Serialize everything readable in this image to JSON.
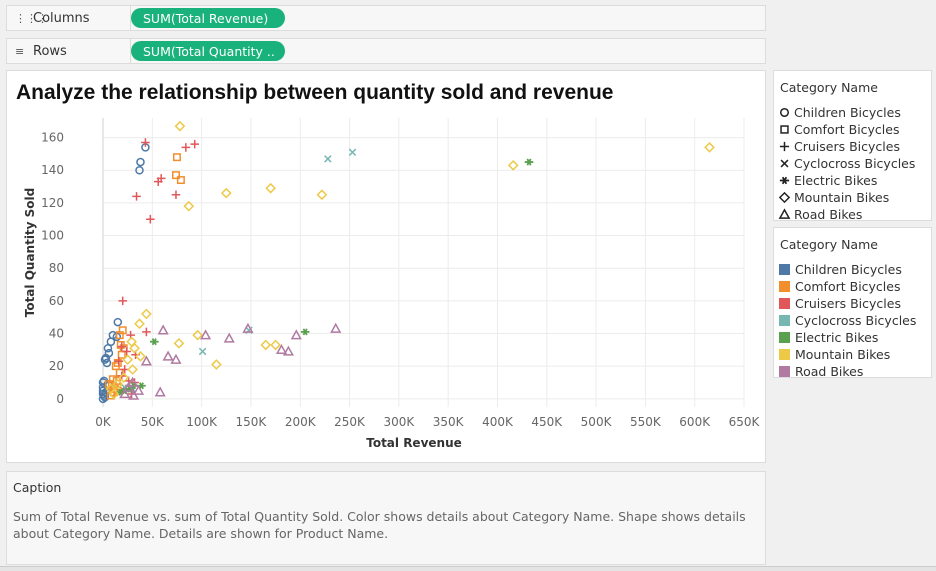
{
  "shelves": {
    "columns": {
      "label": "Columns",
      "icon": "columns-icon",
      "pill": "SUM(Total Revenue)"
    },
    "rows": {
      "label": "Rows",
      "icon": "rows-icon",
      "pill": "SUM(Total Quantity .."
    }
  },
  "legends": {
    "shape": {
      "title": "Category Name",
      "items": [
        {
          "label": "Children Bicycles",
          "shape": "circle"
        },
        {
          "label": "Comfort Bicycles",
          "shape": "square"
        },
        {
          "label": "Cruisers Bicycles",
          "shape": "plus"
        },
        {
          "label": "Cyclocross Bicycles",
          "shape": "cross"
        },
        {
          "label": "Electric Bikes",
          "shape": "asterisk"
        },
        {
          "label": "Mountain Bikes",
          "shape": "diamond"
        },
        {
          "label": "Road Bikes",
          "shape": "triangle"
        }
      ]
    },
    "color": {
      "title": "Category Name",
      "items": [
        {
          "label": "Children Bicycles",
          "color": "#4e79a7"
        },
        {
          "label": "Comfort Bicycles",
          "color": "#f28e2b"
        },
        {
          "label": "Cruisers Bicycles",
          "color": "#e15759"
        },
        {
          "label": "Cyclocross Bicycles",
          "color": "#76b7b2"
        },
        {
          "label": "Electric Bikes",
          "color": "#59a14f"
        },
        {
          "label": "Mountain Bikes",
          "color": "#edc948"
        },
        {
          "label": "Road Bikes",
          "color": "#b07aa1"
        }
      ]
    }
  },
  "caption": {
    "title": "Caption",
    "text": "Sum of Total Revenue vs. sum of Total Quantity Sold.  Color shows details about Category Name.  Shape shows details about Category Name.  Details are shown for Product Name."
  },
  "chart_data": {
    "type": "scatter",
    "title": "Analyze the relationship between quantity sold and revenue",
    "xlabel": "Total Revenue",
    "ylabel": "Total Quantity Sold",
    "xlim": [
      0,
      650000
    ],
    "ylim": [
      -5,
      172
    ],
    "x_ticks": [
      0,
      50000,
      100000,
      150000,
      200000,
      250000,
      300000,
      350000,
      400000,
      450000,
      500000,
      550000,
      600000,
      650000
    ],
    "x_tick_labels": [
      "0K",
      "50K",
      "100K",
      "150K",
      "200K",
      "250K",
      "300K",
      "350K",
      "400K",
      "450K",
      "500K",
      "550K",
      "600K",
      "650K"
    ],
    "y_ticks": [
      0,
      20,
      40,
      60,
      80,
      100,
      120,
      140,
      160
    ],
    "grid": true,
    "series": [
      {
        "name": "Children Bicycles",
        "shape": "circle",
        "color": "#4e79a7",
        "points": [
          [
            43000,
            154
          ],
          [
            38000,
            145
          ],
          [
            37000,
            140
          ],
          [
            15000,
            47
          ],
          [
            10000,
            39
          ],
          [
            14000,
            38
          ],
          [
            8000,
            35
          ],
          [
            5000,
            31
          ],
          [
            6000,
            28
          ],
          [
            3000,
            25
          ],
          [
            2000,
            24
          ],
          [
            4000,
            22
          ],
          [
            1000,
            11
          ],
          [
            0,
            10
          ],
          [
            0,
            7
          ],
          [
            0,
            5
          ],
          [
            0,
            3
          ],
          [
            1000,
            2
          ],
          [
            0,
            0
          ],
          [
            2000,
            1
          ],
          [
            3000,
            4
          ],
          [
            5000,
            9
          ]
        ]
      },
      {
        "name": "Comfort Bicycles",
        "shape": "square",
        "color": "#f28e2b",
        "points": [
          [
            75000,
            148
          ],
          [
            74000,
            137
          ],
          [
            79000,
            134
          ],
          [
            20000,
            42
          ],
          [
            17000,
            39
          ],
          [
            18000,
            33
          ],
          [
            21000,
            31
          ],
          [
            19000,
            27
          ],
          [
            15000,
            22
          ],
          [
            13000,
            20
          ],
          [
            17000,
            16
          ],
          [
            10000,
            12
          ],
          [
            9000,
            8
          ],
          [
            12000,
            6
          ],
          [
            15000,
            5
          ],
          [
            11000,
            4
          ],
          [
            8000,
            2
          ],
          [
            6000,
            9
          ],
          [
            14000,
            11
          ]
        ]
      },
      {
        "name": "Cruisers Bicycles",
        "shape": "plus",
        "color": "#e15759",
        "points": [
          [
            43000,
            157
          ],
          [
            93000,
            156
          ],
          [
            84000,
            154
          ],
          [
            59000,
            135
          ],
          [
            56000,
            133
          ],
          [
            74000,
            125
          ],
          [
            34000,
            124
          ],
          [
            48000,
            110
          ],
          [
            20000,
            60
          ],
          [
            28000,
            39
          ],
          [
            44000,
            41
          ],
          [
            19000,
            32
          ],
          [
            24000,
            29
          ],
          [
            33000,
            27
          ],
          [
            16000,
            23
          ],
          [
            22000,
            18
          ],
          [
            19000,
            14
          ],
          [
            26000,
            11
          ],
          [
            32000,
            10
          ],
          [
            23000,
            6
          ],
          [
            29000,
            3
          ]
        ]
      },
      {
        "name": "Cyclocross Bicycles",
        "shape": "cross",
        "color": "#76b7b2",
        "points": [
          [
            253000,
            151
          ],
          [
            228000,
            147
          ],
          [
            148000,
            42
          ],
          [
            101000,
            29
          ],
          [
            22000,
            7
          ],
          [
            30000,
            6
          ]
        ]
      },
      {
        "name": "Electric Bikes",
        "shape": "asterisk",
        "color": "#59a14f",
        "points": [
          [
            432000,
            145
          ],
          [
            205000,
            41
          ],
          [
            52000,
            35
          ],
          [
            39000,
            8
          ],
          [
            31000,
            8
          ],
          [
            27000,
            6
          ],
          [
            22000,
            5
          ],
          [
            18000,
            4
          ]
        ]
      },
      {
        "name": "Mountain Bikes",
        "shape": "diamond",
        "color": "#edc948",
        "points": [
          [
            615000,
            154
          ],
          [
            416000,
            143
          ],
          [
            78000,
            167
          ],
          [
            170000,
            129
          ],
          [
            125000,
            126
          ],
          [
            222000,
            125
          ],
          [
            87000,
            118
          ],
          [
            44000,
            52
          ],
          [
            37000,
            46
          ],
          [
            96000,
            39
          ],
          [
            77000,
            34
          ],
          [
            165000,
            33
          ],
          [
            175000,
            33
          ],
          [
            115000,
            21
          ],
          [
            29000,
            35
          ],
          [
            32000,
            31
          ],
          [
            38000,
            26
          ],
          [
            25000,
            24
          ],
          [
            30000,
            18
          ],
          [
            21000,
            13
          ],
          [
            15000,
            9
          ],
          [
            8000,
            6
          ],
          [
            11000,
            3
          ]
        ]
      },
      {
        "name": "Road Bikes",
        "shape": "triangle",
        "color": "#b07aa1",
        "points": [
          [
            236000,
            43
          ],
          [
            196000,
            39
          ],
          [
            147000,
            43
          ],
          [
            128000,
            37
          ],
          [
            181000,
            30
          ],
          [
            188000,
            29
          ],
          [
            104000,
            39
          ],
          [
            61000,
            42
          ],
          [
            66000,
            26
          ],
          [
            74000,
            24
          ],
          [
            44000,
            23
          ],
          [
            58000,
            4
          ],
          [
            30000,
            10
          ],
          [
            26000,
            7
          ],
          [
            36000,
            5
          ],
          [
            22000,
            3
          ],
          [
            31000,
            2
          ]
        ]
      }
    ]
  }
}
